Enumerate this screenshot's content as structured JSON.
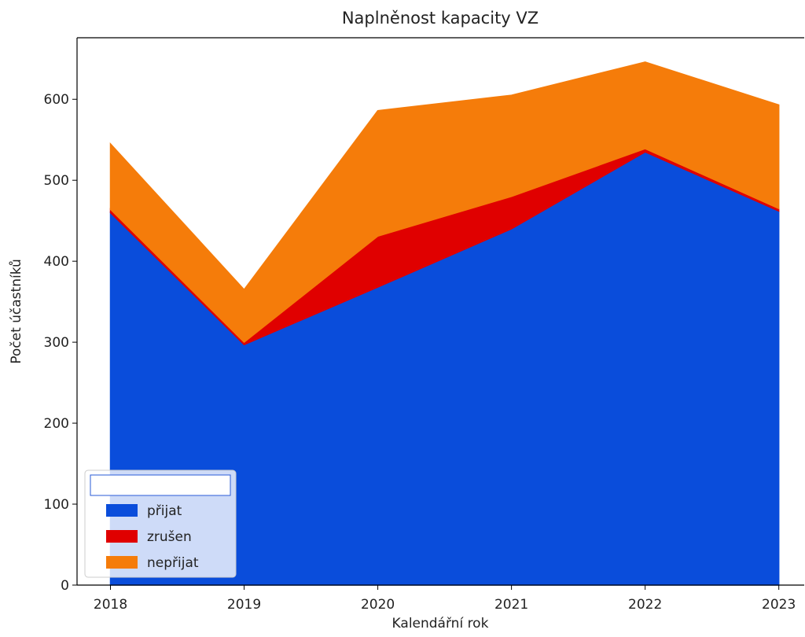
{
  "chart_data": {
    "type": "stacked_area",
    "title": "Naplněnost kapacity VZ",
    "xlabel": "Kalendářní rok",
    "ylabel": "Počet účastníků",
    "x": [
      2018,
      2019,
      2020,
      2021,
      2022,
      2023
    ],
    "series": [
      {
        "name": "přijat",
        "color": "#0a4ddb",
        "values": [
          460,
          297,
          368,
          440,
          535,
          462
        ]
      },
      {
        "name": "zrušen",
        "color": "#e00000",
        "values": [
          4,
          3,
          63,
          40,
          4,
          3
        ]
      },
      {
        "name": "nepřijat",
        "color": "#f57c0a",
        "values": [
          81,
          65,
          155,
          125,
          107,
          128
        ]
      }
    ],
    "xlim": [
      2017.75,
      2023.19
    ],
    "xticks": [
      2018,
      2019,
      2020,
      2021,
      2022,
      2023
    ],
    "ylim": [
      0,
      676
    ],
    "yticks": [
      0,
      100,
      200,
      300,
      400,
      500,
      600
    ],
    "legend": "lower left"
  }
}
